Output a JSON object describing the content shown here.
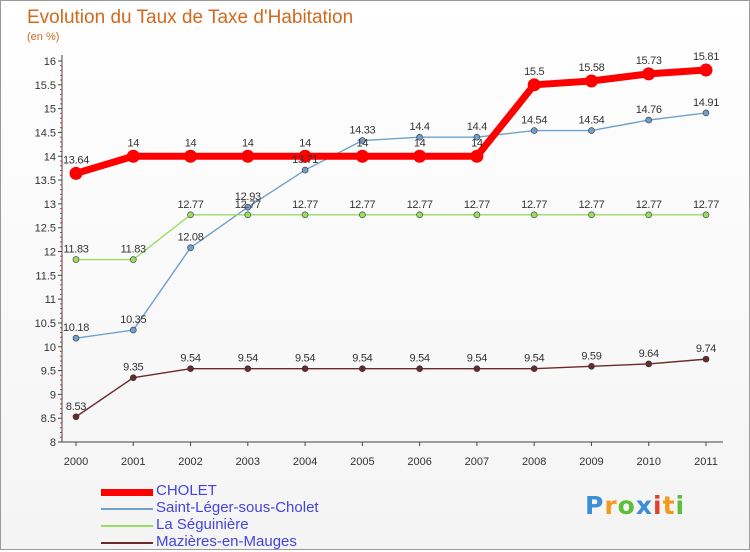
{
  "chart_data": {
    "type": "line",
    "title": "Evolution du Taux de Taxe d'Habitation",
    "unit_label": "(en %)",
    "x": [
      "2000",
      "2001",
      "2002",
      "2003",
      "2004",
      "2005",
      "2006",
      "2007",
      "2008",
      "2009",
      "2010",
      "2011"
    ],
    "ylim": [
      8,
      16
    ],
    "yticks": [
      "8",
      "8.5",
      "9",
      "9.5",
      "10",
      "10.5",
      "11",
      "11.5",
      "12",
      "12.5",
      "13",
      "13.5",
      "14",
      "14.5",
      "15",
      "15.5",
      "16"
    ],
    "grid": false,
    "legend_position": "bottom-left",
    "series": [
      {
        "name": "CHOLET",
        "color": "#ff0000",
        "values": [
          13.64,
          14,
          14,
          14,
          14,
          14,
          14,
          14,
          15.5,
          15.58,
          15.73,
          15.81
        ],
        "labels": [
          "13.64",
          "14",
          "14",
          "14",
          "14",
          "14",
          "14",
          "14",
          "15.5",
          "15.58",
          "15.73",
          "15.81"
        ]
      },
      {
        "name": "Saint-Léger-sous-Cholet",
        "color": "#6fa0cc",
        "values": [
          10.18,
          10.35,
          12.08,
          12.93,
          13.71,
          14.33,
          14.4,
          14.4,
          14.54,
          14.54,
          14.76,
          14.91
        ],
        "labels": [
          "10.18",
          "10.35",
          "12.08",
          "12.93",
          "13.71",
          "14.33",
          "14.4",
          "14.4",
          "14.54",
          "14.54",
          "14.76",
          "14.91"
        ]
      },
      {
        "name": "La Séguinière",
        "color": "#99dd66",
        "values": [
          11.83,
          11.83,
          12.77,
          12.77,
          12.77,
          12.77,
          12.77,
          12.77,
          12.77,
          12.77,
          12.77,
          12.77
        ],
        "labels": [
          "11.83",
          "11.83",
          "12.77",
          "12.77",
          "12.77",
          "12.77",
          "12.77",
          "12.77",
          "12.77",
          "12.77",
          "12.77",
          "12.77"
        ]
      },
      {
        "name": "Mazières-en-Mauges",
        "color": "#6b2a2a",
        "values": [
          8.53,
          9.35,
          9.54,
          9.54,
          9.54,
          9.54,
          9.54,
          9.54,
          9.54,
          9.59,
          9.64,
          9.74
        ],
        "labels": [
          "8.53",
          "9.35",
          "9.54",
          "9.54",
          "9.54",
          "9.54",
          "9.54",
          "9.54",
          "9.54",
          "9.59",
          "9.64",
          "9.74"
        ]
      }
    ]
  },
  "logo": {
    "text": "Proxiti",
    "colors": [
      "#3a8fd6",
      "#f39a1e",
      "#5bbf3a",
      "#3a8fd6",
      "#e43f2a",
      "#f39a1e",
      "#5bbf3a"
    ]
  }
}
